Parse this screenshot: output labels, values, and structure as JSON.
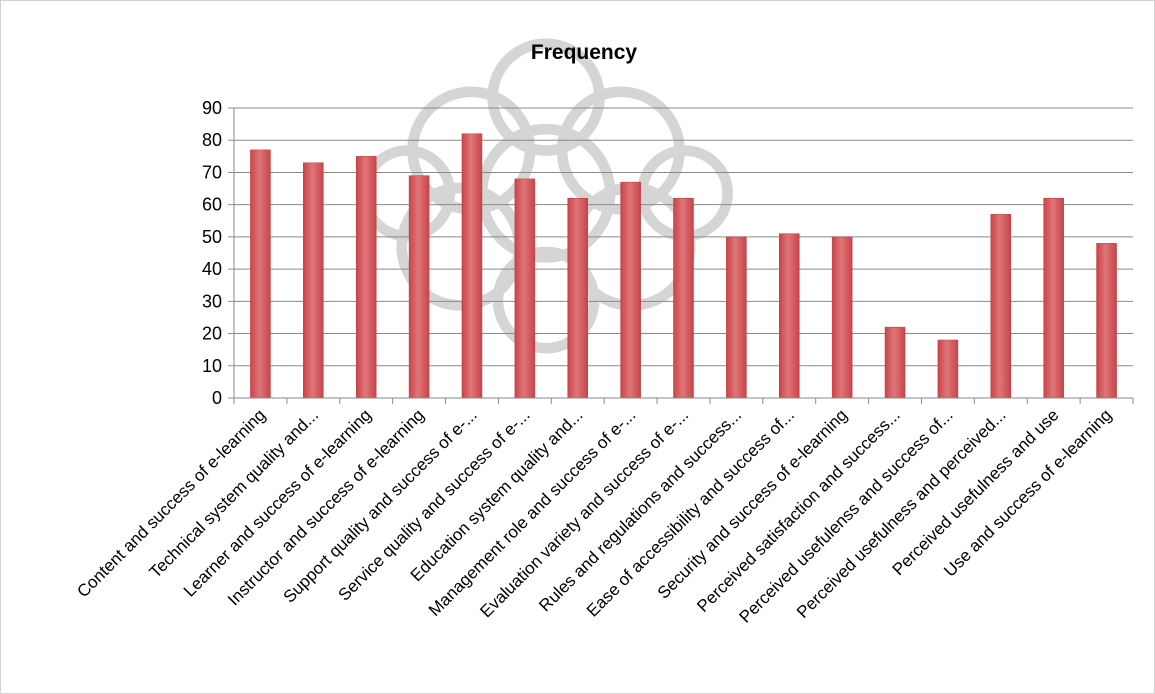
{
  "chart_data": {
    "type": "bar",
    "title": "Frequency",
    "xlabel": "",
    "ylabel": "",
    "ylim": [
      0,
      90
    ],
    "yticks": [
      0,
      10,
      20,
      30,
      40,
      50,
      60,
      70,
      80,
      90
    ],
    "grid": true,
    "legend": "none",
    "bar_color": "#c9444a",
    "bar_highlight": "#de7678",
    "categories": [
      "Content and success of e-learning",
      "Technical system quality and...",
      "Learner and success of e-learning",
      "Instructor and success of e-learning",
      "Support quality and success of e-...",
      "Service quality and success of e-...",
      "Education system quality and...",
      "Management role and success of e-...",
      "Evaluation variety and success of e-...",
      "Rules and regulations and success...",
      "Ease of accessibility and success of...",
      "Security and success of e-learning",
      "Perceived satisfaction and success...",
      "Perceived usefulenss and success of...",
      "Perceived usefulness and perceived...",
      "Perceived usefulness and use",
      "Use and success of e-learning"
    ],
    "values": [
      77,
      73,
      75,
      69,
      82,
      68,
      62,
      67,
      62,
      50,
      51,
      50,
      22,
      18,
      57,
      62,
      48
    ]
  }
}
